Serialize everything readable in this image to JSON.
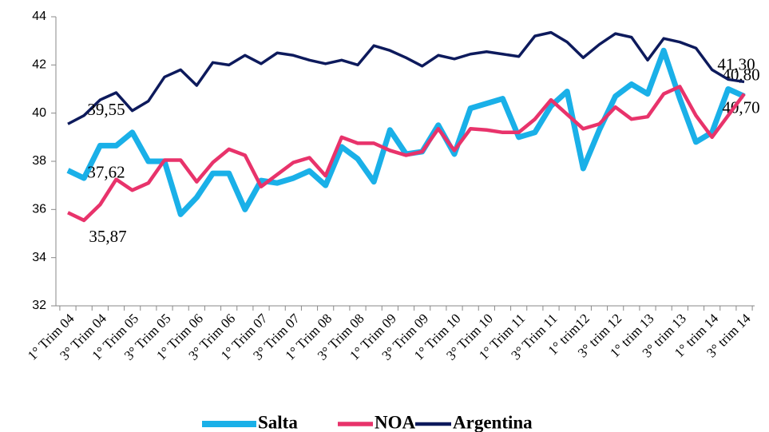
{
  "chart_data": {
    "type": "line",
    "categories": [
      "1° Trim 04",
      null,
      "3° Trim 04",
      null,
      "1° Trim 05",
      null,
      "3° Trim 05",
      null,
      "1° Trim 06",
      null,
      "3° Trim 06",
      null,
      "1° Trim 07",
      null,
      "3° Trim 07",
      null,
      "1° Trim 08",
      null,
      "3° Trim 08",
      null,
      "1° Trim 09",
      null,
      "3° Trim 09",
      null,
      "1° Trim 10",
      null,
      "3° Trim 10",
      null,
      "1° Trim 11",
      null,
      "3° Trim 11",
      null,
      "1° trim12",
      null,
      "3° trim 12",
      null,
      "1° trim 13",
      null,
      "3° trim 13",
      null,
      "1° trim 14",
      null,
      "3° trim 14"
    ],
    "series": [
      {
        "name": "Salta",
        "color": "#1ab0e8",
        "values": [
          37.62,
          37.3,
          38.65,
          38.65,
          39.2,
          38.0,
          38.0,
          35.8,
          36.5,
          37.5,
          37.5,
          36.0,
          37.2,
          37.1,
          37.3,
          37.6,
          37.0,
          38.6,
          38.1,
          37.15,
          39.3,
          38.3,
          38.4,
          39.5,
          38.3,
          40.2,
          40.4,
          40.6,
          39.0,
          39.2,
          40.3,
          40.9,
          37.7,
          39.3,
          40.7,
          41.2,
          40.8,
          42.6,
          40.6,
          38.8,
          39.2,
          41.0,
          40.7
        ],
        "value_labels": [
          "37,62",
          null,
          null,
          null,
          null,
          null,
          null,
          null,
          null,
          null,
          null,
          null,
          null,
          null,
          null,
          null,
          null,
          null,
          null,
          null,
          null,
          null,
          null,
          null,
          null,
          null,
          null,
          null,
          null,
          null,
          null,
          null,
          null,
          null,
          null,
          null,
          null,
          null,
          null,
          null,
          null,
          null,
          "40,70"
        ]
      },
      {
        "name": "NOA",
        "color": "#e8336b",
        "values": [
          35.87,
          35.55,
          36.2,
          37.25,
          36.8,
          37.1,
          38.05,
          38.05,
          37.15,
          37.95,
          38.5,
          38.25,
          36.95,
          37.45,
          37.95,
          38.15,
          37.4,
          39.0,
          38.75,
          38.75,
          38.45,
          38.25,
          38.4,
          39.35,
          38.45,
          39.35,
          39.3,
          39.2,
          39.2,
          39.75,
          40.55,
          39.95,
          39.35,
          39.55,
          40.25,
          39.75,
          39.85,
          40.8,
          41.1,
          39.9,
          39.0,
          39.9,
          40.8
        ],
        "value_labels": [
          "35,87",
          null,
          null,
          null,
          null,
          null,
          null,
          null,
          null,
          null,
          null,
          null,
          null,
          null,
          null,
          null,
          null,
          null,
          null,
          null,
          null,
          null,
          null,
          null,
          null,
          null,
          null,
          null,
          null,
          null,
          null,
          null,
          null,
          null,
          null,
          null,
          null,
          null,
          null,
          null,
          null,
          null,
          "40,80"
        ]
      },
      {
        "name": "Argentina",
        "color": "#0d1a5c",
        "values": [
          39.55,
          39.9,
          40.55,
          40.85,
          40.1,
          40.5,
          41.5,
          41.8,
          41.15,
          42.1,
          42.0,
          42.4,
          42.05,
          42.5,
          42.4,
          42.2,
          42.05,
          42.2,
          42.0,
          42.8,
          42.6,
          42.3,
          41.95,
          42.4,
          42.25,
          42.45,
          42.55,
          42.45,
          42.35,
          43.2,
          43.35,
          42.95,
          42.3,
          42.85,
          43.3,
          43.15,
          42.2,
          43.1,
          42.95,
          42.7,
          41.8,
          41.4,
          41.3
        ],
        "value_labels": [
          "39,55",
          null,
          null,
          null,
          null,
          null,
          null,
          null,
          null,
          null,
          null,
          null,
          null,
          null,
          null,
          null,
          null,
          null,
          null,
          null,
          null,
          null,
          null,
          null,
          null,
          null,
          null,
          null,
          null,
          null,
          null,
          null,
          null,
          null,
          null,
          null,
          null,
          null,
          null,
          null,
          null,
          null,
          "41,30"
        ]
      }
    ],
    "ylim": [
      32,
      44
    ],
    "yticks": [
      32,
      34,
      36,
      38,
      40,
      42,
      44
    ],
    "grid": false,
    "legend": "bottom"
  }
}
